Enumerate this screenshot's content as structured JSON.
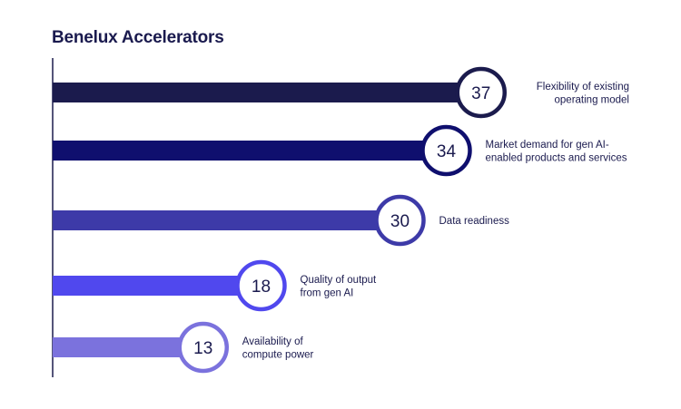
{
  "chart_data": {
    "type": "bar",
    "orientation": "horizontal",
    "title": "Benelux Accelerators",
    "categories": [
      "Flexibility of existing operating model",
      "Market demand for gen AI-enabled products and services",
      "Data readiness",
      "Quality of output from gen AI",
      "Availability of compute power"
    ],
    "values": [
      37,
      34,
      30,
      18,
      13
    ],
    "label_lines": [
      [
        "Flexibility of existing",
        "operating model"
      ],
      [
        "Market demand for gen AI-",
        "enabled products and services"
      ],
      [
        "Data readiness"
      ],
      [
        "Quality of output",
        "from gen AI"
      ],
      [
        "Availability of",
        "compute power"
      ]
    ],
    "label_align": [
      "right",
      "left",
      "left",
      "left",
      "left"
    ],
    "colors": [
      "#1b1b4d",
      "#0f0f6e",
      "#3d3aa8",
      "#5048ee",
      "#7b72dd"
    ],
    "grid": false,
    "legend": "none"
  }
}
